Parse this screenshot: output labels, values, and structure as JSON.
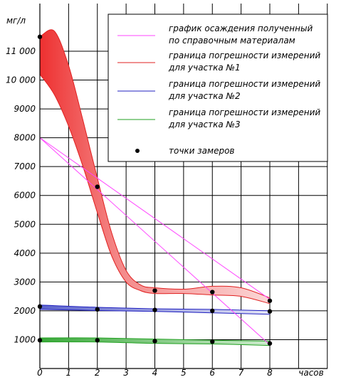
{
  "chart_data": {
    "type": "line",
    "xlabel": "часов",
    "ylabel": "мг/л",
    "xlim": [
      0,
      8
    ],
    "ylim": [
      0,
      11500
    ],
    "x_ticks": [
      "0",
      "1",
      "2",
      "3",
      "4",
      "5",
      "6",
      "7",
      "8"
    ],
    "y_ticks": [
      "1000",
      "2000",
      "3000",
      "4000",
      "5000",
      "6000",
      "7000",
      "8000",
      "9000",
      "10 000",
      "11 000"
    ],
    "y_tick_values": [
      1000,
      2000,
      3000,
      4000,
      5000,
      6000,
      7000,
      8000,
      9000,
      10000,
      11000
    ],
    "grid": true,
    "legend_position": "top-right",
    "colors": {
      "reference": "#ff44ff",
      "band1_stroke": "#e02020",
      "band2_stroke": "#2020c0",
      "band3_stroke": "#20a020",
      "point": "#000000"
    },
    "legend": [
      {
        "id": "reference",
        "text": [
          "график осаждения полученный",
          "по справочным материалам"
        ]
      },
      {
        "id": "band1",
        "text": [
          "граница погрешности измерений",
          "для участка №1"
        ]
      },
      {
        "id": "band2",
        "text": [
          "граница погрешности измерений",
          "для участка №2"
        ]
      },
      {
        "id": "band3",
        "text": [
          "граница погрешности измерений",
          "для участка №3"
        ]
      },
      {
        "id": "points",
        "text": [
          "точки замеров"
        ]
      }
    ],
    "reference_lines": [
      {
        "points": [
          [
            0,
            8000
          ],
          [
            8,
            2400
          ]
        ]
      },
      {
        "points": [
          [
            0,
            8000
          ],
          [
            8,
            820
          ]
        ]
      }
    ],
    "bands": [
      {
        "id": "band1",
        "upper": [
          [
            0,
            11500
          ],
          [
            0.5,
            11700
          ],
          [
            1,
            10500
          ],
          [
            1.5,
            8600
          ],
          [
            2,
            6600
          ],
          [
            2.5,
            4700
          ],
          [
            3,
            3400
          ],
          [
            3.5,
            2900
          ],
          [
            4,
            2800
          ],
          [
            5,
            2750
          ],
          [
            6,
            2850
          ],
          [
            7,
            2800
          ],
          [
            8,
            2450
          ]
        ],
        "lower": [
          [
            0,
            10200
          ],
          [
            0.5,
            9500
          ],
          [
            1,
            8400
          ],
          [
            1.5,
            7000
          ],
          [
            2,
            5400
          ],
          [
            2.5,
            3900
          ],
          [
            3,
            3000
          ],
          [
            3.5,
            2700
          ],
          [
            4,
            2600
          ],
          [
            5,
            2600
          ],
          [
            6,
            2550
          ],
          [
            7,
            2500
          ],
          [
            8,
            2250
          ]
        ]
      },
      {
        "id": "band2",
        "upper": [
          [
            0,
            2200
          ],
          [
            2,
            2120
          ],
          [
            4,
            2070
          ],
          [
            6,
            2050
          ],
          [
            8,
            2000
          ]
        ],
        "lower": [
          [
            0,
            2050
          ],
          [
            2,
            2010
          ],
          [
            4,
            1980
          ],
          [
            6,
            1930
          ],
          [
            8,
            1880
          ]
        ]
      },
      {
        "id": "band3",
        "upper": [
          [
            0,
            1060
          ],
          [
            2,
            1060
          ],
          [
            4,
            1020
          ],
          [
            6,
            980
          ],
          [
            8,
            950
          ]
        ],
        "lower": [
          [
            0,
            920
          ],
          [
            2,
            920
          ],
          [
            4,
            870
          ],
          [
            6,
            850
          ],
          [
            8,
            800
          ]
        ]
      }
    ],
    "points": [
      {
        "x": 0,
        "y": 11500
      },
      {
        "x": 2,
        "y": 6300
      },
      {
        "x": 4,
        "y": 2700
      },
      {
        "x": 6,
        "y": 2650
      },
      {
        "x": 8,
        "y": 2350
      },
      {
        "x": 0,
        "y": 2150
      },
      {
        "x": 2,
        "y": 2050
      },
      {
        "x": 4,
        "y": 2030
      },
      {
        "x": 6,
        "y": 2000
      },
      {
        "x": 8,
        "y": 1980
      },
      {
        "x": 0,
        "y": 980
      },
      {
        "x": 2,
        "y": 980
      },
      {
        "x": 4,
        "y": 950
      },
      {
        "x": 6,
        "y": 930
      },
      {
        "x": 8,
        "y": 870
      }
    ]
  }
}
